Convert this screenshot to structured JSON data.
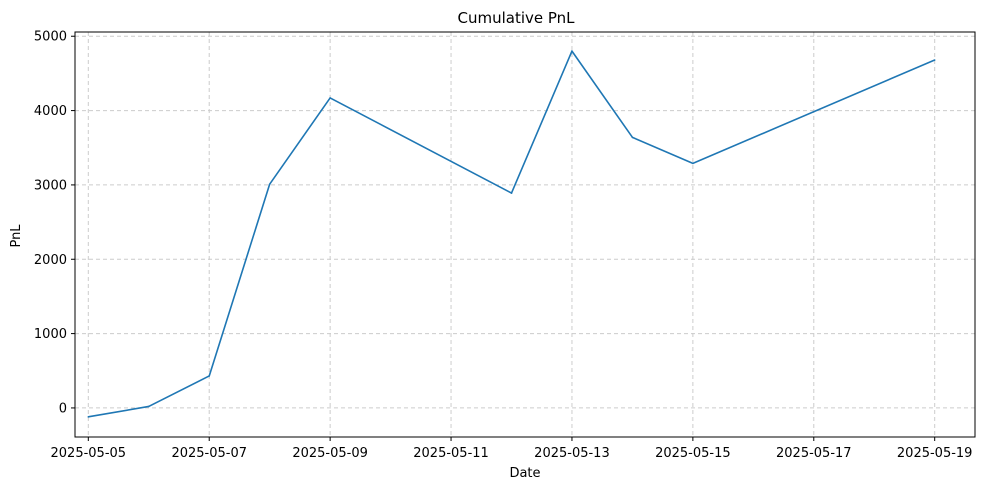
{
  "chart_data": {
    "type": "line",
    "title": "Cumulative PnL",
    "xlabel": "Date",
    "ylabel": "PnL",
    "grid": true,
    "x": [
      "2025-05-05",
      "2025-05-06",
      "2025-05-07",
      "2025-05-08",
      "2025-05-09",
      "2025-05-12",
      "2025-05-13",
      "2025-05-14",
      "2025-05-15",
      "2025-05-19"
    ],
    "series": [
      {
        "values": [
          -120,
          20,
          430,
          3010,
          4170,
          2890,
          4800,
          3640,
          3290,
          4680
        ]
      }
    ],
    "xticks": [
      "2025-05-05",
      "2025-05-07",
      "2025-05-09",
      "2025-05-11",
      "2025-05-13",
      "2025-05-15",
      "2025-05-17",
      "2025-05-19"
    ],
    "yticks": [
      0,
      1000,
      2000,
      3000,
      4000,
      5000
    ],
    "xlim": [
      "2025-05-04T18:43",
      "2025-05-19T16:00"
    ],
    "ylim": [
      -391,
      5057
    ],
    "colors": {
      "line": "#1f77b4",
      "grid": "#cccccc",
      "axis": "#000000"
    }
  }
}
